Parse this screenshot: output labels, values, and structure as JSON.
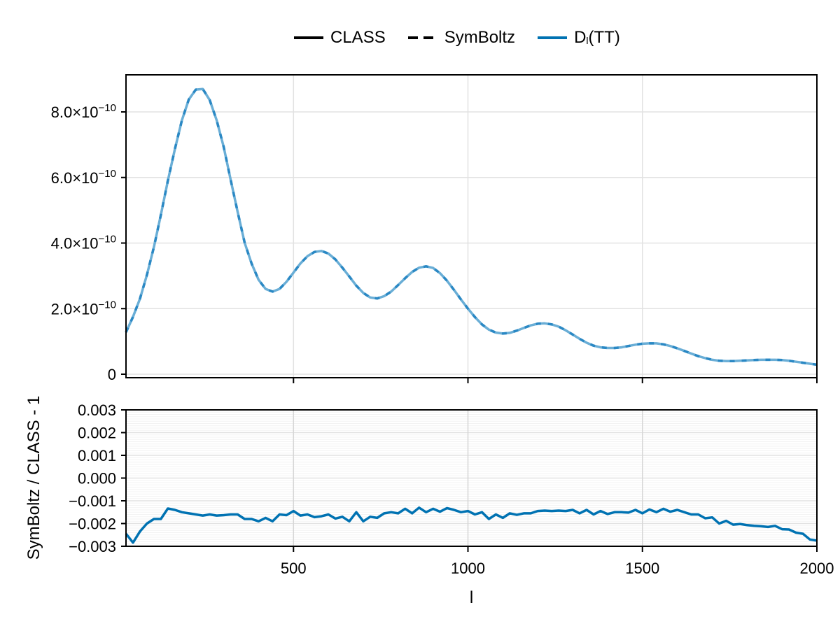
{
  "legend": {
    "items": [
      {
        "label": "CLASS",
        "style": "solid",
        "color": "#000000"
      },
      {
        "label": "SymBoltz",
        "style": "dashed",
        "color": "#000000"
      },
      {
        "label_main": "D",
        "label_sub": "l",
        "label_rest": "(TT)",
        "style": "solid",
        "color": "#0072b2"
      }
    ]
  },
  "colors": {
    "series": "#0072b2",
    "series_light": "#6aaed6",
    "series_dash": "#2a88c4",
    "grid_major": "#e2e2e2",
    "grid_minor": "#f3f3f3",
    "axis": "#000000"
  },
  "chart_data": [
    {
      "type": "line",
      "title": "",
      "xlabel": "",
      "ylabel": "",
      "xlim": [
        20,
        2000
      ],
      "ylim": [
        -5e-12,
        9.1e-10
      ],
      "grid": true,
      "legend_position": "top",
      "yticks": [
        0,
        2e-10,
        4e-10,
        6e-10,
        8e-10
      ],
      "ytick_labels": [
        "0",
        "2.0×10⁻¹⁰",
        "4.0×10⁻¹⁰",
        "6.0×10⁻¹⁰",
        "8.0×10⁻¹⁰"
      ],
      "xticks": [
        500,
        1000,
        1500,
        2000
      ],
      "series": [
        {
          "name": "CLASS / SymBoltz Dl(TT)",
          "x": [
            20,
            40,
            60,
            80,
            100,
            120,
            140,
            160,
            180,
            200,
            220,
            240,
            260,
            280,
            300,
            320,
            340,
            360,
            380,
            400,
            420,
            440,
            460,
            480,
            500,
            520,
            540,
            560,
            580,
            600,
            620,
            640,
            660,
            680,
            700,
            720,
            740,
            760,
            780,
            800,
            820,
            840,
            860,
            880,
            900,
            920,
            940,
            960,
            980,
            1000,
            1020,
            1040,
            1060,
            1080,
            1100,
            1120,
            1140,
            1160,
            1180,
            1200,
            1220,
            1240,
            1260,
            1280,
            1300,
            1320,
            1340,
            1360,
            1380,
            1400,
            1420,
            1440,
            1460,
            1480,
            1500,
            1520,
            1540,
            1560,
            1580,
            1600,
            1620,
            1640,
            1660,
            1680,
            1700,
            1720,
            1740,
            1760,
            1780,
            1800,
            1820,
            1840,
            1860,
            1880,
            1900,
            1920,
            1940,
            1960,
            1980,
            2000
          ],
          "y": [
            1.28e-10,
            1.75e-10,
            2.3e-10,
            3.03e-10,
            3.88e-10,
            4.86e-10,
            5.9e-10,
            6.86e-10,
            7.74e-10,
            8.38e-10,
            8.68e-10,
            8.7e-10,
            8.36e-10,
            7.74e-10,
            6.93e-10,
            5.93e-10,
            4.95e-10,
            4.01e-10,
            3.37e-10,
            2.88e-10,
            2.6e-10,
            2.52e-10,
            2.6e-10,
            2.82e-10,
            3.1e-10,
            3.38e-10,
            3.6e-10,
            3.73e-10,
            3.76e-10,
            3.68e-10,
            3.5e-10,
            3.25e-10,
            2.98e-10,
            2.7e-10,
            2.48e-10,
            2.34e-10,
            2.31e-10,
            2.38e-10,
            2.52e-10,
            2.72e-10,
            2.93e-10,
            3.12e-10,
            3.25e-10,
            3.29e-10,
            3.24e-10,
            3.08e-10,
            2.85e-10,
            2.57e-10,
            2.28e-10,
            2e-10,
            1.74e-10,
            1.52e-10,
            1.36e-10,
            1.27e-10,
            1.24e-10,
            1.26e-10,
            1.33e-10,
            1.41e-10,
            1.49e-10,
            1.54e-10,
            1.55e-10,
            1.52e-10,
            1.45e-10,
            1.34e-10,
            1.21e-10,
            1.08e-10,
            9.6e-11,
            8.7e-11,
            8.2e-11,
            8e-11,
            8e-11,
            8.2e-11,
            8.6e-11,
            9e-11,
            9.3e-11,
            9.4e-11,
            9.4e-11,
            9.1e-11,
            8.6e-11,
            7.9e-11,
            7.1e-11,
            6.3e-11,
            5.5e-11,
            4.9e-11,
            4.4e-11,
            4.1e-11,
            4e-11,
            4e-11,
            4.1e-11,
            4.2e-11,
            4.3e-11,
            4.4e-11,
            4.4e-11,
            4.4e-11,
            4.3e-11,
            4.1e-11,
            3.8e-11,
            3.5e-11,
            3.2e-11,
            2.9e-11
          ]
        }
      ]
    },
    {
      "type": "line",
      "title": "",
      "xlabel": "l",
      "ylabel": "SymBoltz / CLASS - 1",
      "xlim": [
        20,
        2000
      ],
      "ylim": [
        -0.003,
        0.003
      ],
      "grid": true,
      "yticks": [
        -0.003,
        -0.002,
        -0.001,
        0.0,
        0.001,
        0.002,
        0.003
      ],
      "ytick_labels": [
        "−0.003",
        "−0.002",
        "−0.001",
        "0.000",
        "0.001",
        "0.002",
        "0.003"
      ],
      "xticks": [
        500,
        1000,
        1500,
        2000
      ],
      "xtick_labels": [
        "500",
        "1000",
        "1500",
        "2000"
      ],
      "series": [
        {
          "name": "SymBoltz / CLASS - 1",
          "x": [
            20,
            40,
            60,
            80,
            100,
            120,
            140,
            160,
            180,
            200,
            220,
            240,
            260,
            280,
            300,
            320,
            340,
            360,
            380,
            400,
            420,
            440,
            460,
            480,
            500,
            520,
            540,
            560,
            580,
            600,
            620,
            640,
            660,
            680,
            700,
            720,
            740,
            760,
            780,
            800,
            820,
            840,
            860,
            880,
            900,
            920,
            940,
            960,
            980,
            1000,
            1020,
            1040,
            1060,
            1080,
            1100,
            1120,
            1140,
            1160,
            1180,
            1200,
            1220,
            1240,
            1260,
            1280,
            1300,
            1320,
            1340,
            1360,
            1380,
            1400,
            1420,
            1440,
            1460,
            1480,
            1500,
            1520,
            1540,
            1560,
            1580,
            1600,
            1620,
            1640,
            1660,
            1680,
            1700,
            1720,
            1740,
            1760,
            1780,
            1800,
            1820,
            1840,
            1860,
            1880,
            1900,
            1920,
            1940,
            1960,
            1980,
            2000
          ],
          "y": [
            -0.00245,
            -0.00284,
            -0.00235,
            -0.002,
            -0.0018,
            -0.0018,
            -0.00134,
            -0.0014,
            -0.0015,
            -0.00155,
            -0.0016,
            -0.00165,
            -0.0016,
            -0.00165,
            -0.00163,
            -0.0016,
            -0.0016,
            -0.0018,
            -0.0018,
            -0.0019,
            -0.00175,
            -0.0019,
            -0.0016,
            -0.00163,
            -0.00145,
            -0.00165,
            -0.0016,
            -0.00172,
            -0.00168,
            -0.0016,
            -0.00178,
            -0.0017,
            -0.0019,
            -0.0015,
            -0.0019,
            -0.0017,
            -0.00175,
            -0.00155,
            -0.0015,
            -0.00155,
            -0.00135,
            -0.00155,
            -0.0013,
            -0.0015,
            -0.00135,
            -0.00148,
            -0.00132,
            -0.0014,
            -0.0015,
            -0.00145,
            -0.0016,
            -0.0015,
            -0.0018,
            -0.0016,
            -0.00175,
            -0.00155,
            -0.00162,
            -0.00155,
            -0.00155,
            -0.00145,
            -0.00143,
            -0.00145,
            -0.00143,
            -0.00145,
            -0.0014,
            -0.00155,
            -0.0014,
            -0.0016,
            -0.00145,
            -0.00158,
            -0.0015,
            -0.0015,
            -0.00152,
            -0.0014,
            -0.00155,
            -0.00138,
            -0.0015,
            -0.00135,
            -0.00148,
            -0.0014,
            -0.0015,
            -0.0016,
            -0.0016,
            -0.00177,
            -0.00173,
            -0.002,
            -0.00188,
            -0.00205,
            -0.00202,
            -0.00207,
            -0.0021,
            -0.00212,
            -0.00215,
            -0.0021,
            -0.00225,
            -0.00226,
            -0.0024,
            -0.00245,
            -0.0027,
            -0.00275
          ]
        }
      ]
    }
  ]
}
